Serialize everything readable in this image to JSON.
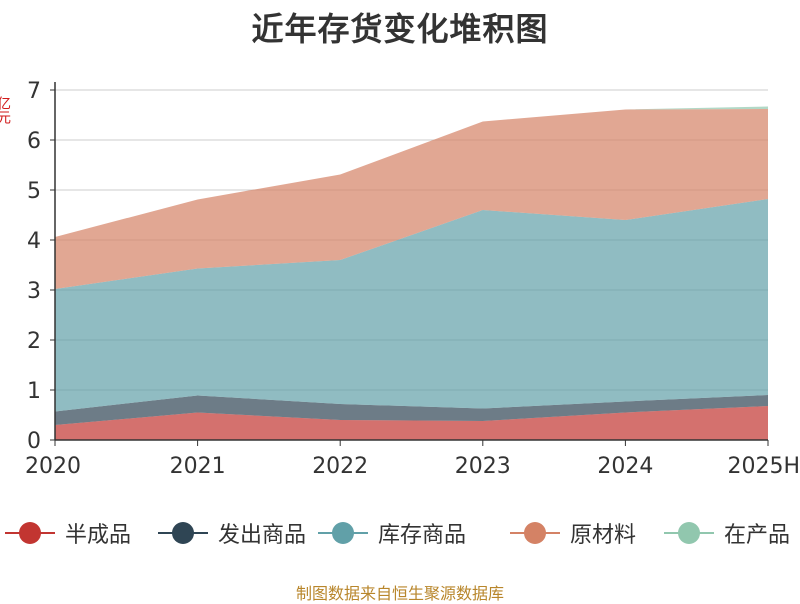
{
  "chart_data": {
    "type": "area",
    "stacked": true,
    "title": "近年存货变化堆积图",
    "ylabel": "亿元",
    "categories": [
      "2020",
      "2021",
      "2022",
      "2023",
      "2024",
      "2025H"
    ],
    "ylim": [
      0,
      7
    ],
    "yticks": [
      0,
      1,
      2,
      3,
      4,
      5,
      6,
      7
    ],
    "grid": true,
    "legend_position": "bottom",
    "series": [
      {
        "name": "半成品",
        "color": "#c23531",
        "values": [
          0.3,
          0.55,
          0.4,
          0.38,
          0.55,
          0.68
        ]
      },
      {
        "name": "发出商品",
        "color": "#2f4554",
        "values": [
          0.27,
          0.34,
          0.32,
          0.25,
          0.22,
          0.22
        ]
      },
      {
        "name": "库存商品",
        "color": "#61a0a8",
        "values": [
          2.45,
          2.54,
          2.88,
          3.97,
          3.63,
          3.92
        ]
      },
      {
        "name": "原材料",
        "color": "#d48265",
        "values": [
          1.04,
          1.38,
          1.71,
          1.77,
          2.21,
          1.8
        ]
      },
      {
        "name": "在产品",
        "color": "#91c7ae",
        "values": [
          0.0,
          0.0,
          0.0,
          0.0,
          0.0,
          0.05
        ]
      }
    ]
  },
  "source_note": "制图数据来自恒生聚源数据库"
}
